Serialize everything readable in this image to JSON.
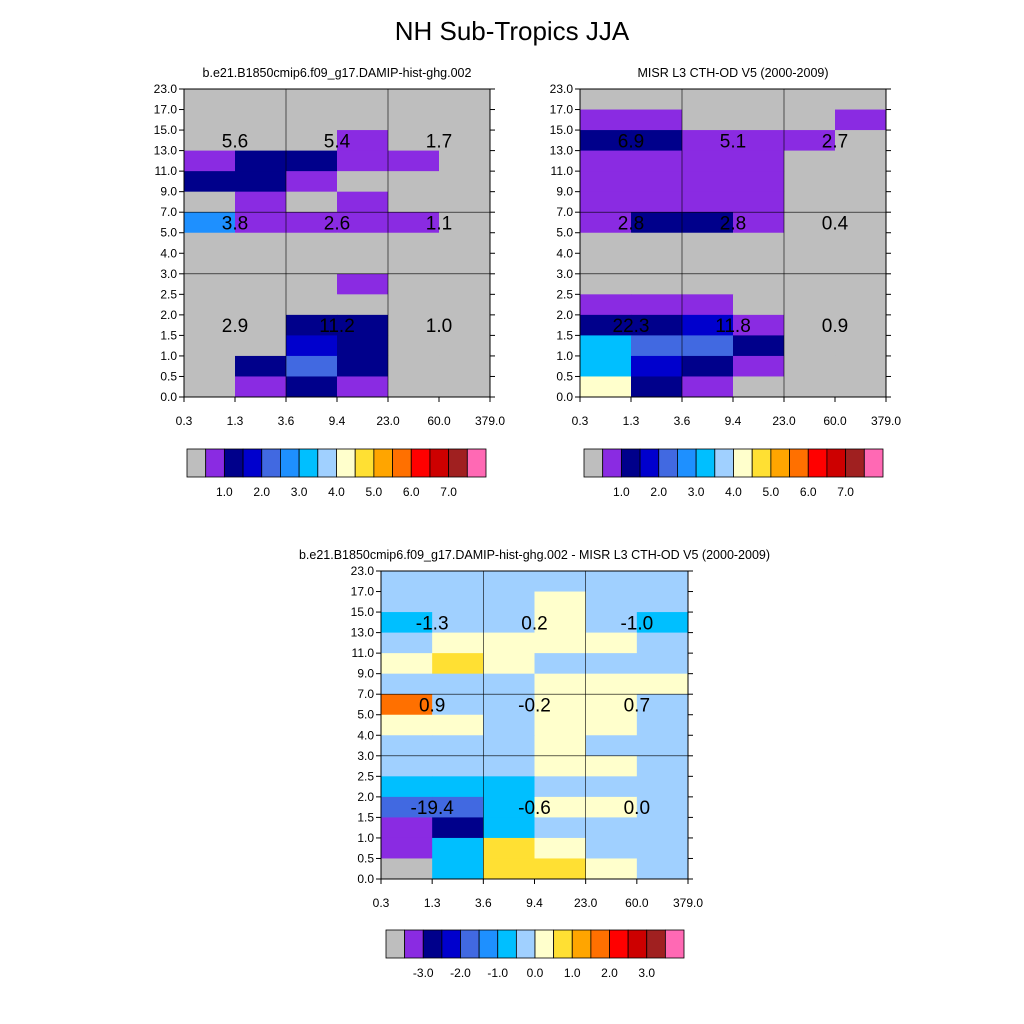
{
  "title": "NH Sub-Tropics JJA",
  "chart_data": [
    {
      "type": "heatmap",
      "title": "b.e21.B1850cmip6.f09_g17.DAMIP-hist-ghg.002",
      "x_ticks": [
        "0.3",
        "1.3",
        "3.6",
        "9.4",
        "23.0",
        "60.0",
        "379.0"
      ],
      "y_ticks": [
        "0.0",
        "0.5",
        "1.0",
        "1.5",
        "2.0",
        "2.5",
        "3.0",
        "4.0",
        "5.0",
        "7.0",
        "9.0",
        "11.0",
        "13.0",
        "15.0",
        "17.0",
        "23.0"
      ],
      "grid_x": [
        2,
        4
      ],
      "grid_y": [
        6,
        9
      ],
      "cells": [
        [
          "gray",
          "gray",
          "gray",
          "gray",
          "gray",
          "gray"
        ],
        [
          "gray",
          "gray",
          "gray",
          "gray",
          "gray",
          "gray"
        ],
        [
          "gray",
          "gray",
          "gray",
          "purple",
          "gray",
          "gray"
        ],
        [
          "purple",
          "navy",
          "navy",
          "purple",
          "purple",
          "gray"
        ],
        [
          "navy",
          "navy",
          "purple",
          "gray",
          "gray",
          "gray"
        ],
        [
          "gray",
          "purple",
          "gray",
          "purple",
          "gray",
          "gray"
        ],
        [
          "dodgerblue",
          "purple",
          "purple",
          "purple",
          "purple",
          "gray"
        ],
        [
          "gray",
          "gray",
          "gray",
          "gray",
          "gray",
          "gray"
        ],
        [
          "gray",
          "gray",
          "gray",
          "gray",
          "gray",
          "gray"
        ],
        [
          "gray",
          "gray",
          "gray",
          "purple",
          "gray",
          "gray"
        ],
        [
          "gray",
          "gray",
          "gray",
          "gray",
          "gray",
          "gray"
        ],
        [
          "gray",
          "gray",
          "navy",
          "navy",
          "gray",
          "gray"
        ],
        [
          "gray",
          "gray",
          "mediumblue",
          "navy",
          "gray",
          "gray"
        ],
        [
          "gray",
          "navy",
          "royalblue",
          "navy",
          "gray",
          "gray"
        ],
        [
          "gray",
          "purple",
          "navy",
          "purple",
          "gray",
          "gray"
        ]
      ],
      "labels": [
        {
          "text": "5.6",
          "col": 1,
          "row": 12
        },
        {
          "text": "5.4",
          "col": 3,
          "row": 12
        },
        {
          "text": "1.7",
          "col": 5,
          "row": 12
        },
        {
          "text": "3.8",
          "col": 1,
          "row": 8
        },
        {
          "text": "2.6",
          "col": 3,
          "row": 8
        },
        {
          "text": "1.1",
          "col": 5,
          "row": 8
        },
        {
          "text": "2.9",
          "col": 1,
          "row": 3
        },
        {
          "text": "11.2",
          "col": 3,
          "row": 3
        },
        {
          "text": "1.0",
          "col": 5,
          "row": 3
        }
      ],
      "colorbar_labels": [
        "1.0",
        "2.0",
        "3.0",
        "4.0",
        "5.0",
        "6.0",
        "7.0"
      ]
    },
    {
      "type": "heatmap",
      "title": "MISR L3 CTH-OD V5 (2000-2009)",
      "x_ticks": [
        "0.3",
        "1.3",
        "3.6",
        "9.4",
        "23.0",
        "60.0",
        "379.0"
      ],
      "y_ticks": [
        "0.0",
        "0.5",
        "1.0",
        "1.5",
        "2.0",
        "2.5",
        "3.0",
        "4.0",
        "5.0",
        "7.0",
        "9.0",
        "11.0",
        "13.0",
        "15.0",
        "17.0",
        "23.0"
      ],
      "grid_x": [
        2,
        4
      ],
      "grid_y": [
        6,
        9
      ],
      "cells": [
        [
          "gray",
          "gray",
          "gray",
          "gray",
          "gray",
          "gray"
        ],
        [
          "purple",
          "purple",
          "gray",
          "gray",
          "gray",
          "purple"
        ],
        [
          "navy",
          "navy",
          "purple",
          "purple",
          "purple",
          "gray"
        ],
        [
          "purple",
          "purple",
          "purple",
          "purple",
          "gray",
          "gray"
        ],
        [
          "purple",
          "purple",
          "purple",
          "purple",
          "gray",
          "gray"
        ],
        [
          "purple",
          "purple",
          "purple",
          "purple",
          "gray",
          "gray"
        ],
        [
          "purple",
          "navy",
          "navy",
          "purple",
          "gray",
          "gray"
        ],
        [
          "gray",
          "gray",
          "gray",
          "gray",
          "gray",
          "gray"
        ],
        [
          "gray",
          "gray",
          "gray",
          "gray",
          "gray",
          "gray"
        ],
        [
          "gray",
          "gray",
          "gray",
          "gray",
          "gray",
          "gray"
        ],
        [
          "purple",
          "purple",
          "purple",
          "gray",
          "gray",
          "gray"
        ],
        [
          "navy",
          "navy",
          "mediumblue",
          "purple",
          "gray",
          "gray"
        ],
        [
          "deepskyblue",
          "royalblue",
          "royalblue",
          "navy",
          "gray",
          "gray"
        ],
        [
          "deepskyblue",
          "mediumblue",
          "navy",
          "purple",
          "gray",
          "gray"
        ],
        [
          "lightyellow",
          "navy",
          "purple",
          "gray",
          "gray",
          "gray"
        ]
      ],
      "labels": [
        {
          "text": "6.9",
          "col": 1,
          "row": 12
        },
        {
          "text": "5.1",
          "col": 3,
          "row": 12
        },
        {
          "text": "2.7",
          "col": 5,
          "row": 12
        },
        {
          "text": "2.8",
          "col": 1,
          "row": 8
        },
        {
          "text": "2.8",
          "col": 3,
          "row": 8
        },
        {
          "text": "0.4",
          "col": 5,
          "row": 8
        },
        {
          "text": "22.3",
          "col": 1,
          "row": 3
        },
        {
          "text": "11.8",
          "col": 3,
          "row": 3
        },
        {
          "text": "0.9",
          "col": 5,
          "row": 3
        }
      ],
      "colorbar_labels": [
        "1.0",
        "2.0",
        "3.0",
        "4.0",
        "5.0",
        "6.0",
        "7.0"
      ]
    },
    {
      "type": "heatmap",
      "title": "b.e21.B1850cmip6.f09_g17.DAMIP-hist-ghg.002 - MISR L3 CTH-OD V5 (2000-2009)",
      "x_ticks": [
        "0.3",
        "1.3",
        "3.6",
        "9.4",
        "23.0",
        "60.0",
        "379.0"
      ],
      "y_ticks": [
        "0.0",
        "0.5",
        "1.0",
        "1.5",
        "2.0",
        "2.5",
        "3.0",
        "4.0",
        "5.0",
        "7.0",
        "9.0",
        "11.0",
        "13.0",
        "15.0",
        "17.0",
        "23.0"
      ],
      "grid_x": [
        2,
        4
      ],
      "grid_y": [
        6,
        9
      ],
      "cells": [
        [
          "lightblue",
          "lightblue",
          "lightblue",
          "lightblue",
          "lightblue",
          "lightblue"
        ],
        [
          "lightblue",
          "lightblue",
          "lightblue",
          "lightyellow",
          "lightblue",
          "lightblue"
        ],
        [
          "deepskyblue",
          "lightblue",
          "lightblue",
          "lightyellow",
          "lightblue",
          "deepskyblue"
        ],
        [
          "lightblue",
          "lightyellow",
          "lightyellow",
          "lightyellow",
          "lightyellow",
          "lightblue"
        ],
        [
          "lightyellow",
          "gold",
          "lightyellow",
          "lightblue",
          "lightblue",
          "lightblue"
        ],
        [
          "lightblue",
          "lightblue",
          "lightblue",
          "lightyellow",
          "lightyellow",
          "lightyellow"
        ],
        [
          "darkorange",
          "lightblue",
          "lightblue",
          "lightyellow",
          "lightyellow",
          "lightblue"
        ],
        [
          "lightyellow",
          "lightyellow",
          "lightblue",
          "lightyellow",
          "lightyellow",
          "lightblue"
        ],
        [
          "lightblue",
          "lightblue",
          "lightblue",
          "lightyellow",
          "lightblue",
          "lightblue"
        ],
        [
          "lightblue",
          "lightblue",
          "lightblue",
          "lightyellow",
          "lightyellow",
          "lightblue"
        ],
        [
          "deepskyblue",
          "deepskyblue",
          "deepskyblue",
          "lightblue",
          "lightblue",
          "lightblue"
        ],
        [
          "royalblue",
          "royalblue",
          "deepskyblue",
          "lightyellow",
          "lightyellow",
          "lightblue"
        ],
        [
          "purple",
          "navy",
          "deepskyblue",
          "lightblue",
          "lightblue",
          "lightblue"
        ],
        [
          "purple",
          "deepskyblue",
          "gold",
          "lightyellow",
          "lightblue",
          "lightblue"
        ],
        [
          "gray",
          "deepskyblue",
          "gold",
          "gold",
          "lightyellow",
          "lightblue"
        ]
      ],
      "labels": [
        {
          "text": "-1.3",
          "col": 1,
          "row": 12
        },
        {
          "text": "0.2",
          "col": 3,
          "row": 12
        },
        {
          "text": "-1.0",
          "col": 5,
          "row": 12
        },
        {
          "text": "0.9",
          "col": 1,
          "row": 8
        },
        {
          "text": "-0.2",
          "col": 3,
          "row": 8
        },
        {
          "text": "0.7",
          "col": 5,
          "row": 8
        },
        {
          "text": "-19.4",
          "col": 1,
          "row": 3
        },
        {
          "text": "-0.6",
          "col": 3,
          "row": 3
        },
        {
          "text": "0.0",
          "col": 5,
          "row": 3
        }
      ],
      "colorbar_labels": [
        "-3.0",
        "-2.0",
        "-1.0",
        "0.0",
        "1.0",
        "2.0",
        "3.0"
      ]
    }
  ],
  "colors": {
    "gray": "#bebebe",
    "purple": "#8a2be2",
    "navy": "#00008b",
    "mediumblue": "#0000cd",
    "royalblue": "#4169e1",
    "dodgerblue": "#1e90ff",
    "deepskyblue": "#00bfff",
    "lightblue": "#a0d0ff",
    "lightyellow": "#ffffcc",
    "gold": "#ffe033",
    "orange": "#ffa500",
    "darkorange": "#ff7000",
    "red": "#ff0000",
    "firebrick": "#cd0000",
    "darkred": "#a02020",
    "pink": "#ff69b4"
  },
  "colorbar_order": [
    "gray",
    "purple",
    "navy",
    "mediumblue",
    "royalblue",
    "dodgerblue",
    "deepskyblue",
    "lightblue",
    "lightyellow",
    "gold",
    "orange",
    "darkorange",
    "red",
    "firebrick",
    "darkred",
    "pink"
  ]
}
